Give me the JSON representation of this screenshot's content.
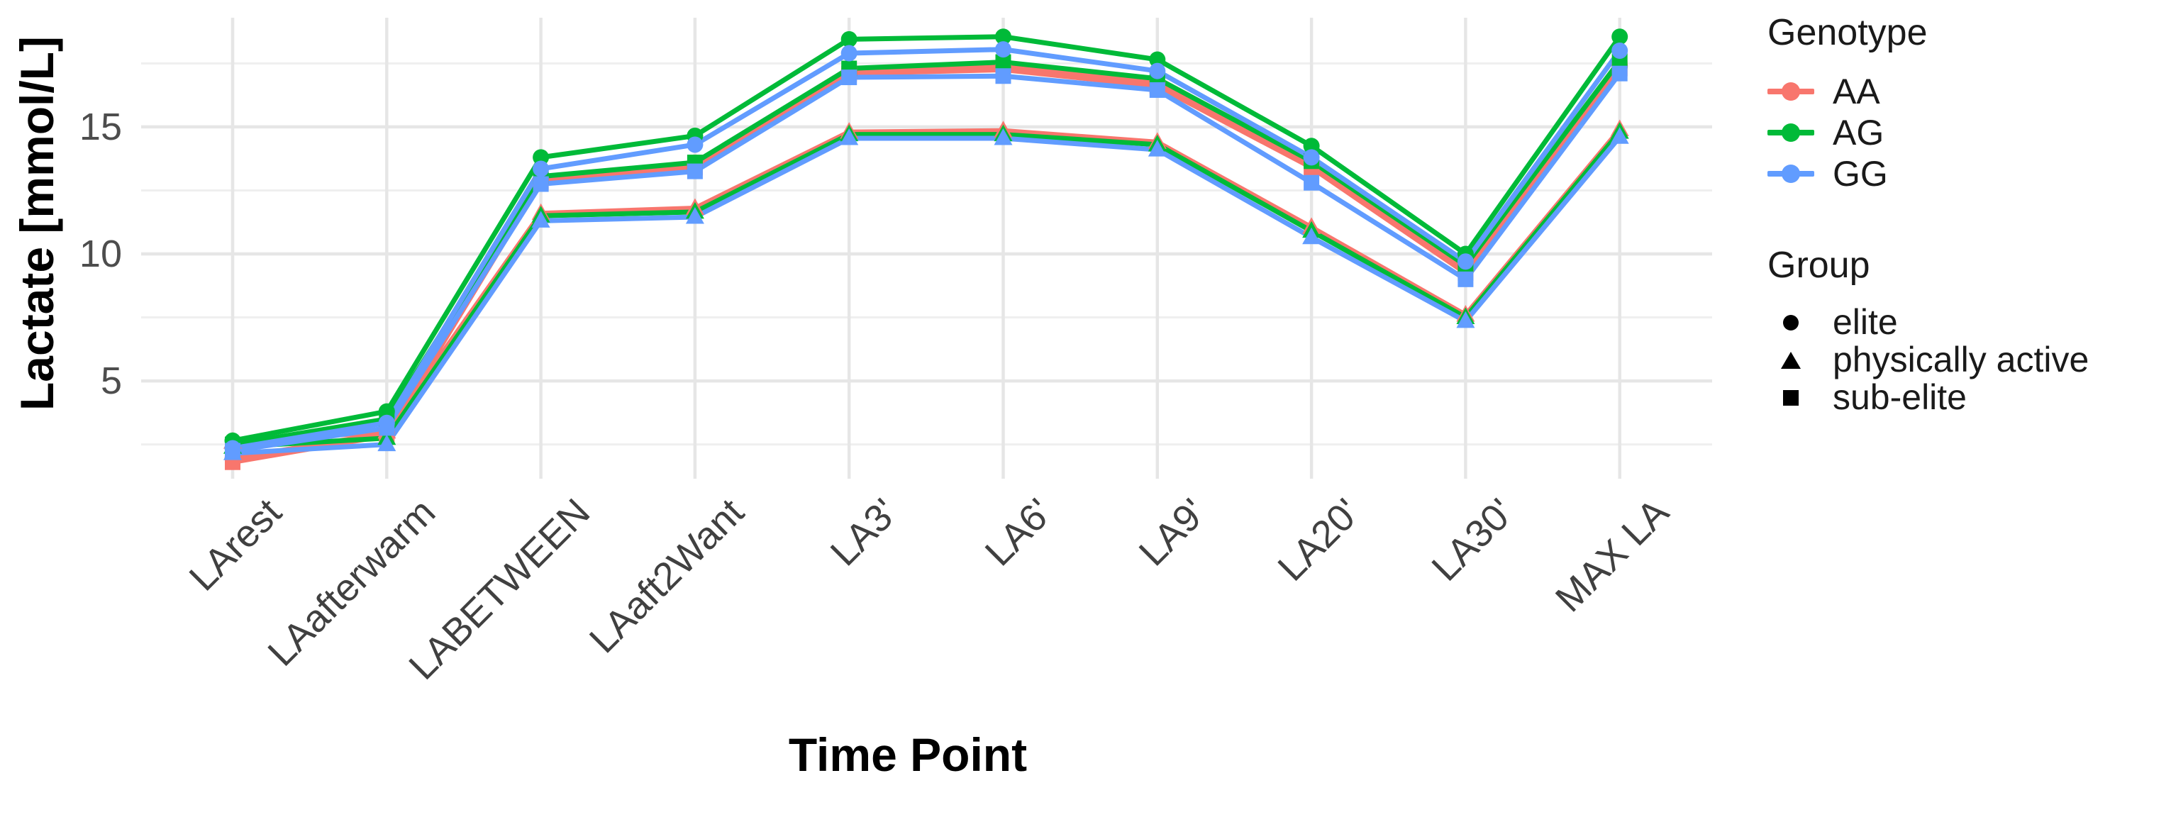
{
  "chart_data": {
    "type": "line",
    "title": "",
    "xlabel": "Time Point",
    "ylabel": "Lactate [mmol/L]",
    "categories": [
      "LArest",
      "LAafterwarm",
      "LABETWEEN",
      "LAaft2Want",
      "LA3'",
      "LA6'",
      "LA9'",
      "LA20'",
      "LA30'",
      "MAX LA"
    ],
    "ylim": [
      1.1,
      19.3
    ],
    "yticks": [
      5,
      10,
      15
    ],
    "minor_gridlines": [
      2.5,
      7.5,
      12.5,
      17.5
    ],
    "grid": "on",
    "legend_position": "right",
    "series": [
      {
        "name": "AA elite",
        "genotype": "AA",
        "group": "elite",
        "color": "#F8766D",
        "shape": "circle",
        "values": [
          1.95,
          2.95,
          12.95,
          13.5,
          17.2,
          17.4,
          16.75,
          13.5,
          9.35,
          17.4
        ]
      },
      {
        "name": "AA sub-elite",
        "genotype": "AA",
        "group": "sub-elite",
        "color": "#F8766D",
        "shape": "square",
        "values": [
          1.8,
          2.85,
          12.85,
          13.4,
          17.1,
          17.25,
          16.6,
          13.4,
          9.25,
          17.3
        ]
      },
      {
        "name": "AA physically active",
        "genotype": "AA",
        "group": "physically active",
        "color": "#F8766D",
        "shape": "triangle",
        "values": [
          2.6,
          3.0,
          11.6,
          11.8,
          14.8,
          14.85,
          14.4,
          11.05,
          7.6,
          14.9
        ]
      },
      {
        "name": "AG elite",
        "genotype": "AG",
        "group": "elite",
        "color": "#00BA38",
        "shape": "circle",
        "values": [
          2.65,
          3.8,
          13.8,
          14.65,
          18.45,
          18.55,
          17.65,
          14.25,
          10.0,
          18.55
        ]
      },
      {
        "name": "AG sub-elite",
        "genotype": "AG",
        "group": "sub-elite",
        "color": "#00BA38",
        "shape": "square",
        "values": [
          2.5,
          3.5,
          13.05,
          13.6,
          17.3,
          17.55,
          16.9,
          13.65,
          9.55,
          17.6
        ]
      },
      {
        "name": "AG physically active",
        "genotype": "AG",
        "group": "physically active",
        "color": "#00BA38",
        "shape": "triangle",
        "values": [
          2.4,
          2.75,
          11.5,
          11.65,
          14.7,
          14.7,
          14.3,
          10.9,
          7.5,
          14.8
        ]
      },
      {
        "name": "GG elite",
        "genotype": "GG",
        "group": "elite",
        "color": "#619CFF",
        "shape": "circle",
        "values": [
          2.35,
          3.35,
          13.35,
          14.3,
          17.9,
          18.05,
          17.2,
          13.8,
          9.7,
          18.0
        ]
      },
      {
        "name": "GG sub-elite",
        "genotype": "GG",
        "group": "sub-elite",
        "color": "#619CFF",
        "shape": "square",
        "values": [
          2.25,
          3.15,
          12.75,
          13.25,
          16.95,
          17.0,
          16.45,
          12.8,
          9.0,
          17.1
        ]
      },
      {
        "name": "GG physically active",
        "genotype": "GG",
        "group": "physically active",
        "color": "#619CFF",
        "shape": "triangle",
        "values": [
          2.15,
          2.5,
          11.3,
          11.45,
          14.55,
          14.55,
          14.1,
          10.65,
          7.35,
          14.6
        ]
      }
    ]
  },
  "legend": {
    "genotype_title": "Genotype",
    "genotype_items": [
      {
        "label": "AA",
        "color": "#F8766D"
      },
      {
        "label": "AG",
        "color": "#00BA38"
      },
      {
        "label": "GG",
        "color": "#619CFF"
      }
    ],
    "group_title": "Group",
    "group_items": [
      {
        "label": "elite",
        "shape": "circle"
      },
      {
        "label": "physically active",
        "shape": "triangle"
      },
      {
        "label": "sub-elite",
        "shape": "square"
      }
    ]
  },
  "colors": {
    "AA": "#F8766D",
    "AG": "#00BA38",
    "GG": "#619CFF",
    "major_gridline": "#e6e6e6",
    "minor_gridline": "#efefef",
    "axis_text": "#4d4d4d",
    "background": "#ffffff"
  }
}
